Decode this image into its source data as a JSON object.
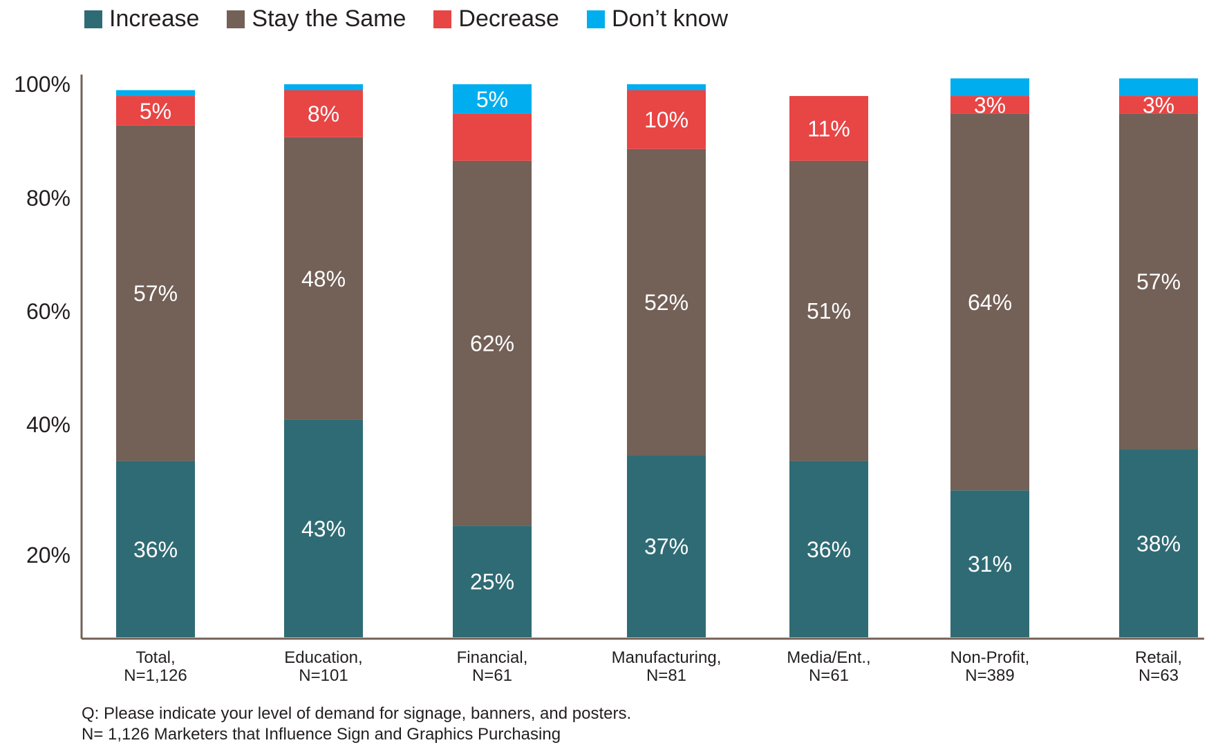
{
  "chart_data": {
    "type": "bar",
    "stacked": true,
    "categories": [
      "Total,\nN=1,126",
      "Education,\nN=101",
      "Financial,\nN=61",
      "Manufacturing,\nN=81",
      "Media/Ent.,\nN=61",
      "Non-Profit,\nN=389",
      "Retail,\nN=63"
    ],
    "category_lines": [
      [
        "Total,",
        "N=1,126"
      ],
      [
        "Education,",
        "N=101"
      ],
      [
        "Financial,",
        "N=61"
      ],
      [
        "Manufacturing,",
        "N=81"
      ],
      [
        "Media/Ent.,",
        "N=61"
      ],
      [
        "Non-Profit,",
        "N=389"
      ],
      [
        "Retail,",
        "N=63"
      ]
    ],
    "series": [
      {
        "name": "Increase",
        "color": "#2f6b74",
        "values": [
          36,
          43,
          25,
          37,
          36,
          31,
          38
        ],
        "labels": [
          "36%",
          "43%",
          "25%",
          "37%",
          "36%",
          "31%",
          "38%"
        ]
      },
      {
        "name": "Stay the Same",
        "color": "#736057",
        "values": [
          57,
          48,
          62,
          52,
          51,
          64,
          57
        ],
        "labels": [
          "57%",
          "48%",
          "62%",
          "52%",
          "51%",
          "64%",
          "57%"
        ]
      },
      {
        "name": "Decrease",
        "color": "#e84545",
        "values": [
          5,
          8,
          8,
          10,
          11,
          3,
          3
        ],
        "labels": [
          "5%",
          "8%",
          "",
          "10%",
          "11%",
          "3%",
          "3%"
        ]
      },
      {
        "name": "Don’t know",
        "color": "#00aeef",
        "values": [
          1,
          1,
          5,
          1,
          0,
          3,
          3
        ],
        "labels": [
          "",
          "",
          "5%",
          "",
          "",
          "",
          ""
        ]
      }
    ],
    "yticks": [
      "20%",
      "40%",
      "60%",
      "80%",
      "100%"
    ],
    "legend_position": "top-left",
    "grid": false,
    "xlabel": "",
    "ylabel": ""
  },
  "footnotes": {
    "question": "Q:  Please indicate your level of demand for signage, banners, and posters.",
    "sample": "N= 1,126 Marketers that Influence Sign and Graphics Purchasing"
  }
}
